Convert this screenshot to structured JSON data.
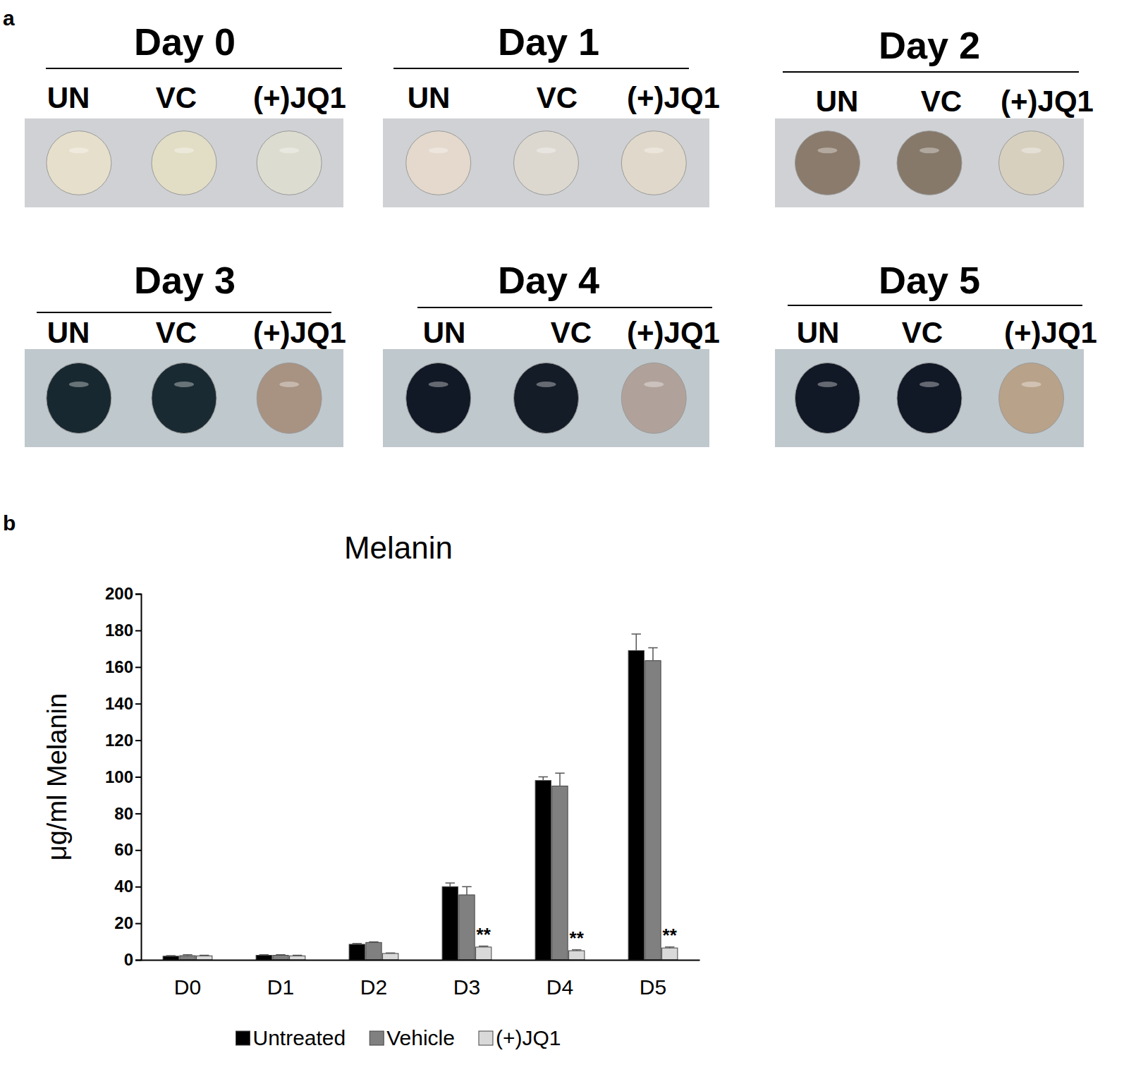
{
  "panel_a": {
    "label": "a",
    "days": [
      {
        "title": "Day 0",
        "lanes": [
          "UN",
          "VC",
          "(+)JQ1"
        ],
        "colors": [
          "#e6dfcb",
          "#e2dec6",
          "#dcdcd0"
        ]
      },
      {
        "title": "Day 1",
        "lanes": [
          "UN",
          "VC",
          "(+)JQ1"
        ],
        "colors": [
          "#e4d9cc",
          "#dcd8d0",
          "#e0d8ca"
        ]
      },
      {
        "title": "Day 2",
        "lanes": [
          "UN",
          "VC",
          "(+)JQ1"
        ],
        "colors": [
          "#8a7b6c",
          "#86796a",
          "#d8d0bf"
        ]
      },
      {
        "title": "Day 3",
        "lanes": [
          "UN",
          "VC",
          "(+)JQ1"
        ],
        "colors": [
          "#182830",
          "#1a2a32",
          "#a89282"
        ]
      },
      {
        "title": "Day 4",
        "lanes": [
          "UN",
          "VC",
          "(+)JQ1"
        ],
        "colors": [
          "#111826",
          "#141c28",
          "#b0a29a"
        ]
      },
      {
        "title": "Day 5",
        "lanes": [
          "UN",
          "VC",
          "(+)JQ1"
        ],
        "colors": [
          "#111826",
          "#111826",
          "#b8a28a"
        ]
      }
    ]
  },
  "panel_b_label": "b",
  "chart_data": {
    "type": "bar",
    "title": "Melanin",
    "y_label": "μg/ml Melanin",
    "categories": [
      "D0",
      "D1",
      "D2",
      "D3",
      "D4",
      "D5"
    ],
    "series": [
      {
        "name": "Untreated",
        "color": "#000000",
        "values": [
          2,
          2.5,
          8.5,
          40,
          98,
          169
        ],
        "errors": [
          0.3,
          0.3,
          0.5,
          2,
          2,
          9
        ]
      },
      {
        "name": "Vehicle",
        "color": "#808080",
        "values": [
          2.3,
          2.5,
          9.5,
          35.5,
          95,
          163.5
        ],
        "errors": [
          0.5,
          0.3,
          0.3,
          4.5,
          7,
          7
        ]
      },
      {
        "name": "(+)JQ1",
        "color": "#d9d9d9",
        "values": [
          2.2,
          2.2,
          3.5,
          7,
          5,
          6.5
        ],
        "errors": [
          0.3,
          0.3,
          0.3,
          0.5,
          0.5,
          0.5
        ]
      }
    ],
    "annotations": [
      {
        "text": "**",
        "x": "D3",
        "series": "(+)JQ1"
      },
      {
        "text": "**",
        "x": "D4",
        "series": "(+)JQ1"
      },
      {
        "text": "**",
        "x": "D5",
        "series": "(+)JQ1"
      }
    ],
    "ylim": [
      0,
      200
    ],
    "yticks": [
      0,
      20,
      40,
      60,
      80,
      100,
      120,
      140,
      160,
      180,
      200
    ],
    "grid": false,
    "legend": "bottom"
  }
}
